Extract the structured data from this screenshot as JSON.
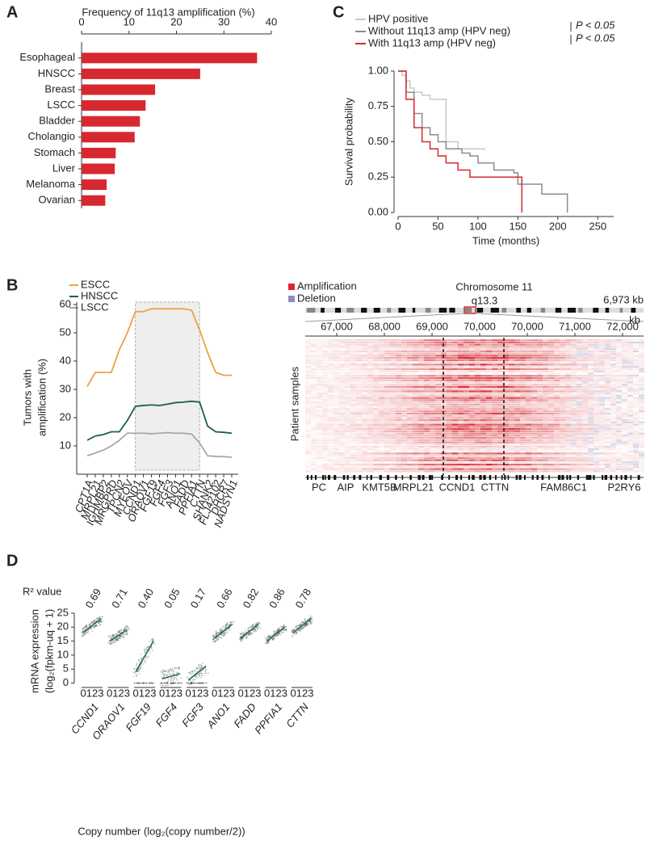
{
  "chart_data": [
    {
      "type": "hbar",
      "panel": "A",
      "title": "Frequency of 11q13 amplification (%)",
      "categories": [
        "Esophageal",
        "HNSCC",
        "Breast",
        "LSCC",
        "Bladder",
        "Cholangio",
        "Stomach",
        "Liver",
        "Melanoma",
        "Ovarian"
      ],
      "values": [
        37,
        25,
        15.5,
        13.5,
        12.3,
        11.2,
        7.2,
        7,
        5.3,
        5
      ],
      "color": "#d7282f",
      "xlim": [
        0,
        40
      ],
      "xticks": [
        0,
        10,
        20,
        30,
        40
      ]
    },
    {
      "type": "step",
      "panel": "C",
      "xlabel": "Time (months)",
      "ylabel": "Survival probability",
      "xlim": [
        0,
        270
      ],
      "xticks": [
        0,
        50,
        100,
        150,
        200,
        250
      ],
      "ylim": [
        0,
        1
      ],
      "yticks": [
        {
          "value": 0,
          "label": "0.00"
        },
        {
          "value": 0.25,
          "label": "0.25"
        },
        {
          "value": 0.5,
          "label": "0.50"
        },
        {
          "value": 0.75,
          "label": "0.75"
        },
        {
          "value": 1,
          "label": "1.00"
        }
      ],
      "annotations": [
        "P < 0.05",
        "P < 0.05"
      ],
      "series": [
        {
          "name": "HPV positive",
          "color": "#c8c8c8",
          "x": [
            0,
            5,
            10,
            15,
            20,
            30,
            40,
            55,
            60,
            75,
            108
          ],
          "values": [
            1,
            0.97,
            0.93,
            0.88,
            0.85,
            0.83,
            0.8,
            0.8,
            0.5,
            0.45,
            0.44
          ]
        },
        {
          "name": "Without 11q13 amp (HPV neg)",
          "color": "#8c8c8c",
          "x": [
            0,
            10,
            20,
            30,
            40,
            50,
            60,
            80,
            90,
            100,
            120,
            145,
            150,
            180,
            212
          ],
          "values": [
            1,
            0.85,
            0.7,
            0.6,
            0.55,
            0.5,
            0.45,
            0.42,
            0.4,
            0.35,
            0.3,
            0.28,
            0.2,
            0.13,
            0
          ]
        },
        {
          "name": "With 11q13 amp (HPV neg)",
          "color": "#d7282f",
          "x": [
            0,
            10,
            20,
            30,
            40,
            50,
            60,
            75,
            90,
            155
          ],
          "values": [
            1,
            0.8,
            0.6,
            0.5,
            0.45,
            0.4,
            0.35,
            0.3,
            0.25,
            0
          ]
        }
      ]
    },
    {
      "type": "line",
      "panel": "B",
      "ylabel": [
        "Tumors with",
        "amplification (%)"
      ],
      "categories": [
        "CPT1A",
        "MRPL21",
        "IGHMBP2",
        "MRGPRD",
        "TPCN2",
        "MYEOV",
        "CCND1",
        "ORAOV1",
        "FGF19",
        "FGF4",
        "FGF3",
        "ANO1",
        "FADD",
        "PPFIA1",
        "CTTN",
        "SHANK2",
        "FLJ42102",
        "DHCR7",
        "NADSYN1"
      ],
      "highlight_range": [
        "CCND1",
        "CTTN"
      ],
      "ylim": [
        0,
        60
      ],
      "yticks": [
        10,
        20,
        30,
        40,
        50,
        60
      ],
      "series": [
        {
          "name": "ESCC",
          "color": "#f0a040",
          "values": [
            31,
            36,
            36,
            36,
            44,
            50,
            57.5,
            57.5,
            58.5,
            58.5,
            58.5,
            58.5,
            58.5,
            58,
            51,
            43,
            36,
            35,
            35
          ]
        },
        {
          "name": "HNSCC",
          "color": "#1e5e4e",
          "values": [
            12,
            13.5,
            14,
            15,
            15,
            19,
            24,
            24.3,
            24.5,
            24.3,
            24.8,
            25.3,
            25.5,
            25.8,
            25.5,
            17,
            15,
            14.8,
            14.5
          ]
        },
        {
          "name": "LSCC",
          "color": "#a8a8a8",
          "values": [
            6.5,
            7.5,
            8.5,
            10,
            12,
            14.5,
            14.5,
            14.5,
            14.3,
            14.5,
            14.7,
            14.5,
            14.5,
            14.2,
            11,
            6.5,
            6.3,
            6.2,
            6
          ]
        }
      ]
    },
    {
      "type": "heatmap",
      "title": "Chromosome 11",
      "subtitle": "q13.3",
      "size_label": "6,973 kb",
      "unit": "kb",
      "legend": [
        {
          "name": "Amplification",
          "color": "#d7282f"
        },
        {
          "name": "Deletion",
          "color": "#8c8cc4"
        }
      ],
      "ylabel": "Patient samples",
      "xtick_labels": [
        "67,000",
        "68,000",
        "69,000",
        "70,000",
        "70,000",
        "71,000",
        "72,000"
      ],
      "genes": [
        "PC",
        "AIP",
        "KMT5B",
        "MRPL21",
        "CCND1",
        "CTTN",
        "FAM86C1",
        "P2RY6"
      ]
    },
    {
      "type": "strip",
      "panel": "D",
      "header": "R² value",
      "categories": [
        "CCND1",
        "ORAOV1",
        "FGF19",
        "FGF4",
        "FGF3",
        "ANO1",
        "FADD",
        "PPFIA1",
        "CTTN"
      ],
      "values": [
        0.69,
        0.71,
        0.4,
        0.05,
        0.17,
        0.66,
        0.82,
        0.86,
        0.78
      ],
      "value_labels": [
        "0.69",
        "0.71",
        "0.40",
        "0.05",
        "0.17",
        "0.66",
        "0.82",
        "0.86",
        "0.78"
      ],
      "fit_start": [
        18,
        15,
        4,
        1.5,
        1,
        16,
        16,
        15,
        18
      ],
      "fit_end": [
        23,
        19,
        15,
        3.3,
        6,
        21,
        21,
        20,
        23
      ],
      "color": "#1e6e4e",
      "ylabel": [
        "mRNA expression",
        "(log₂(fpkm-uq + 1)"
      ],
      "xlabel": "Copy number (log₂(copy number/2))",
      "xtick_label": "0123",
      "ylim": [
        -1,
        25
      ],
      "yticks": [
        0,
        5,
        10,
        15,
        20,
        25
      ]
    }
  ]
}
